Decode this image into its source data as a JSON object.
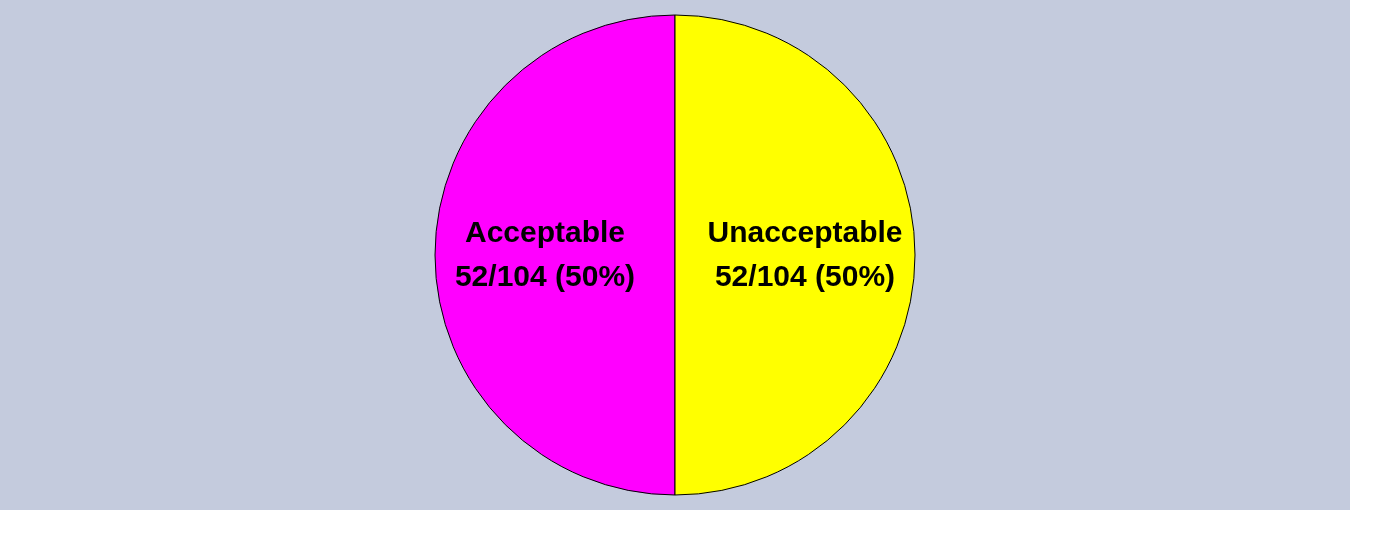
{
  "chart_data": {
    "type": "pie",
    "categories": [
      "Acceptable",
      "Unacceptable"
    ],
    "values": [
      52,
      52
    ],
    "value_labels": [
      "52/104 (50%)",
      "52/104 (50%)"
    ],
    "colors": [
      "#ff00ff",
      "#ffff00"
    ]
  }
}
